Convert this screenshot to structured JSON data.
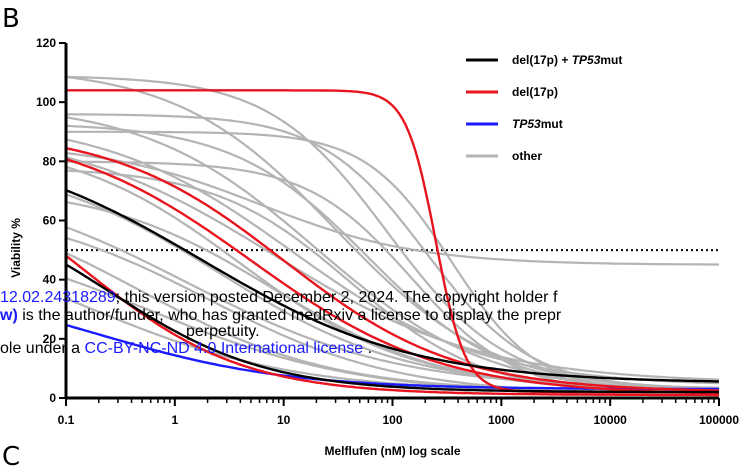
{
  "panel_label": "B",
  "next_panel_label": "C",
  "watermark": {
    "line1_link": "12.02.24318289",
    "line1_text": "; this version posted December 2, 2024. The copyright holder f",
    "line2_bold": "w)",
    "line2_text": " is the author/funder, who has granted medRxiv a license to display the prepr",
    "line3_text": "perpetuity.",
    "line4_prefix": "ole under a ",
    "line4_link": "CC-BY-NC-ND 4.0 International license",
    "line4_suffix": " ."
  },
  "chart_data": {
    "type": "line",
    "xlabel": "Melflufen (nM) log scale",
    "ylabel": "Viability %",
    "x_scale": "log",
    "xlim": [
      0.1,
      100000
    ],
    "ylim": [
      0,
      120
    ],
    "x_ticks": [
      {
        "value": 0.1,
        "label": "0.1"
      },
      {
        "value": 1,
        "label": "1"
      },
      {
        "value": 10,
        "label": "10"
      },
      {
        "value": 100,
        "label": "100"
      },
      {
        "value": 1000,
        "label": "1000"
      },
      {
        "value": 10000,
        "label": "10000"
      },
      {
        "value": 100000,
        "label": "100000"
      }
    ],
    "y_ticks": [
      {
        "value": 0,
        "label": "0"
      },
      {
        "value": 20,
        "label": "20"
      },
      {
        "value": 40,
        "label": "40"
      },
      {
        "value": 60,
        "label": "60"
      },
      {
        "value": 80,
        "label": "80"
      },
      {
        "value": 100,
        "label": "100"
      },
      {
        "value": 120,
        "label": "120"
      }
    ],
    "reference_line": {
      "y": 50,
      "style": "dotted"
    },
    "legend_position": "top-right",
    "legend": [
      {
        "label_parts": [
          {
            "text": "del(17p) + ",
            "italic": false
          },
          {
            "text": "TP53",
            "italic": true
          },
          {
            "text": "mut",
            "italic": false
          }
        ],
        "color": "#000000"
      },
      {
        "label_parts": [
          {
            "text": "del(17p)",
            "italic": false
          }
        ],
        "color": "#e8141e"
      },
      {
        "label_parts": [
          {
            "text": "TP53",
            "italic": true
          },
          {
            "text": "mut",
            "italic": false
          }
        ],
        "color": "#1a1aff"
      },
      {
        "label_parts": [
          {
            "text": "other",
            "italic": false
          }
        ],
        "color": "#b4b4b4"
      }
    ],
    "series": [
      {
        "group": "other",
        "color": "#b4b4b4",
        "top": 112,
        "bottom": 2,
        "ec50": 30,
        "hill": 0.6
      },
      {
        "group": "other",
        "color": "#b4b4b4",
        "top": 109,
        "bottom": 3,
        "ec50": 90,
        "hill": 0.8
      },
      {
        "group": "other",
        "color": "#b4b4b4",
        "top": 100,
        "bottom": 1,
        "ec50": 20,
        "hill": 0.55
      },
      {
        "group": "other",
        "color": "#b4b4b4",
        "top": 96,
        "bottom": 3,
        "ec50": 200,
        "hill": 0.9
      },
      {
        "group": "other",
        "color": "#b4b4b4",
        "top": 95,
        "bottom": 4,
        "ec50": 12,
        "hill": 0.5
      },
      {
        "group": "other",
        "color": "#b4b4b4",
        "top": 93,
        "bottom": 2,
        "ec50": 60,
        "hill": 0.7
      },
      {
        "group": "other",
        "color": "#b4b4b4",
        "top": 92,
        "bottom": 5,
        "ec50": 8,
        "hill": 0.45
      },
      {
        "group": "other",
        "color": "#b4b4b4",
        "top": 90,
        "bottom": 2,
        "ec50": 350,
        "hill": 1.1
      },
      {
        "group": "other",
        "color": "#b4b4b4",
        "top": 86,
        "bottom": 45,
        "ec50": 6,
        "hill": 0.6
      },
      {
        "group": "other",
        "color": "#b4b4b4",
        "top": 88,
        "bottom": 3,
        "ec50": 4,
        "hill": 0.55
      },
      {
        "group": "other",
        "color": "#b4b4b4",
        "top": 80,
        "bottom": 1,
        "ec50": 150,
        "hill": 0.9
      },
      {
        "group": "other",
        "color": "#b4b4b4",
        "top": 82,
        "bottom": 3,
        "ec50": 2.5,
        "hill": 0.5
      },
      {
        "group": "other",
        "color": "#b4b4b4",
        "top": 78,
        "bottom": 1,
        "ec50": 40,
        "hill": 0.7
      },
      {
        "group": "other",
        "color": "#b4b4b4",
        "top": 75,
        "bottom": 3,
        "ec50": 1.3,
        "hill": 0.45
      },
      {
        "group": "other",
        "color": "#b4b4b4",
        "top": 72,
        "bottom": 2,
        "ec50": 8,
        "hill": 0.55
      },
      {
        "group": "other",
        "color": "#b4b4b4",
        "top": 70,
        "bottom": 2,
        "ec50": 0.5,
        "hill": 0.5
      },
      {
        "group": "other",
        "color": "#b4b4b4",
        "top": 66,
        "bottom": 1,
        "ec50": 2,
        "hill": 0.5
      },
      {
        "group": "other",
        "color": "#b4b4b4",
        "top": 60,
        "bottom": 2,
        "ec50": 0.15,
        "hill": 0.45
      },
      {
        "group": "other",
        "color": "#b4b4b4",
        "top": 58,
        "bottom": 1,
        "ec50": 0.6,
        "hill": 0.45
      },
      {
        "group": "TP53mut",
        "color": "#1a1aff",
        "top": 40,
        "bottom": 3,
        "ec50": 0.2,
        "hill": 0.5
      },
      {
        "group": "del(17p)",
        "color": "#e8141e",
        "top": 104,
        "bottom": 2,
        "ec50": 250,
        "hill": 3.2
      },
      {
        "group": "del(17p)",
        "color": "#e8141e",
        "top": 92,
        "bottom": 1,
        "ec50": 5,
        "hill": 0.5
      },
      {
        "group": "del(17p)",
        "color": "#e8141e",
        "top": 91,
        "bottom": 2,
        "ec50": 10,
        "hill": 0.55
      },
      {
        "group": "del(17p)",
        "color": "#e8141e",
        "top": 85,
        "bottom": 1,
        "ec50": 0.15,
        "hill": 0.6
      },
      {
        "group": "del(17p) + TP53mut",
        "color": "#000000",
        "top": 88,
        "bottom": 5,
        "ec50": 1.8,
        "hill": 0.45
      },
      {
        "group": "del(17p) + TP53mut",
        "color": "#000000",
        "top": 70,
        "bottom": 2,
        "ec50": 0.25,
        "hill": 0.6
      }
    ]
  }
}
